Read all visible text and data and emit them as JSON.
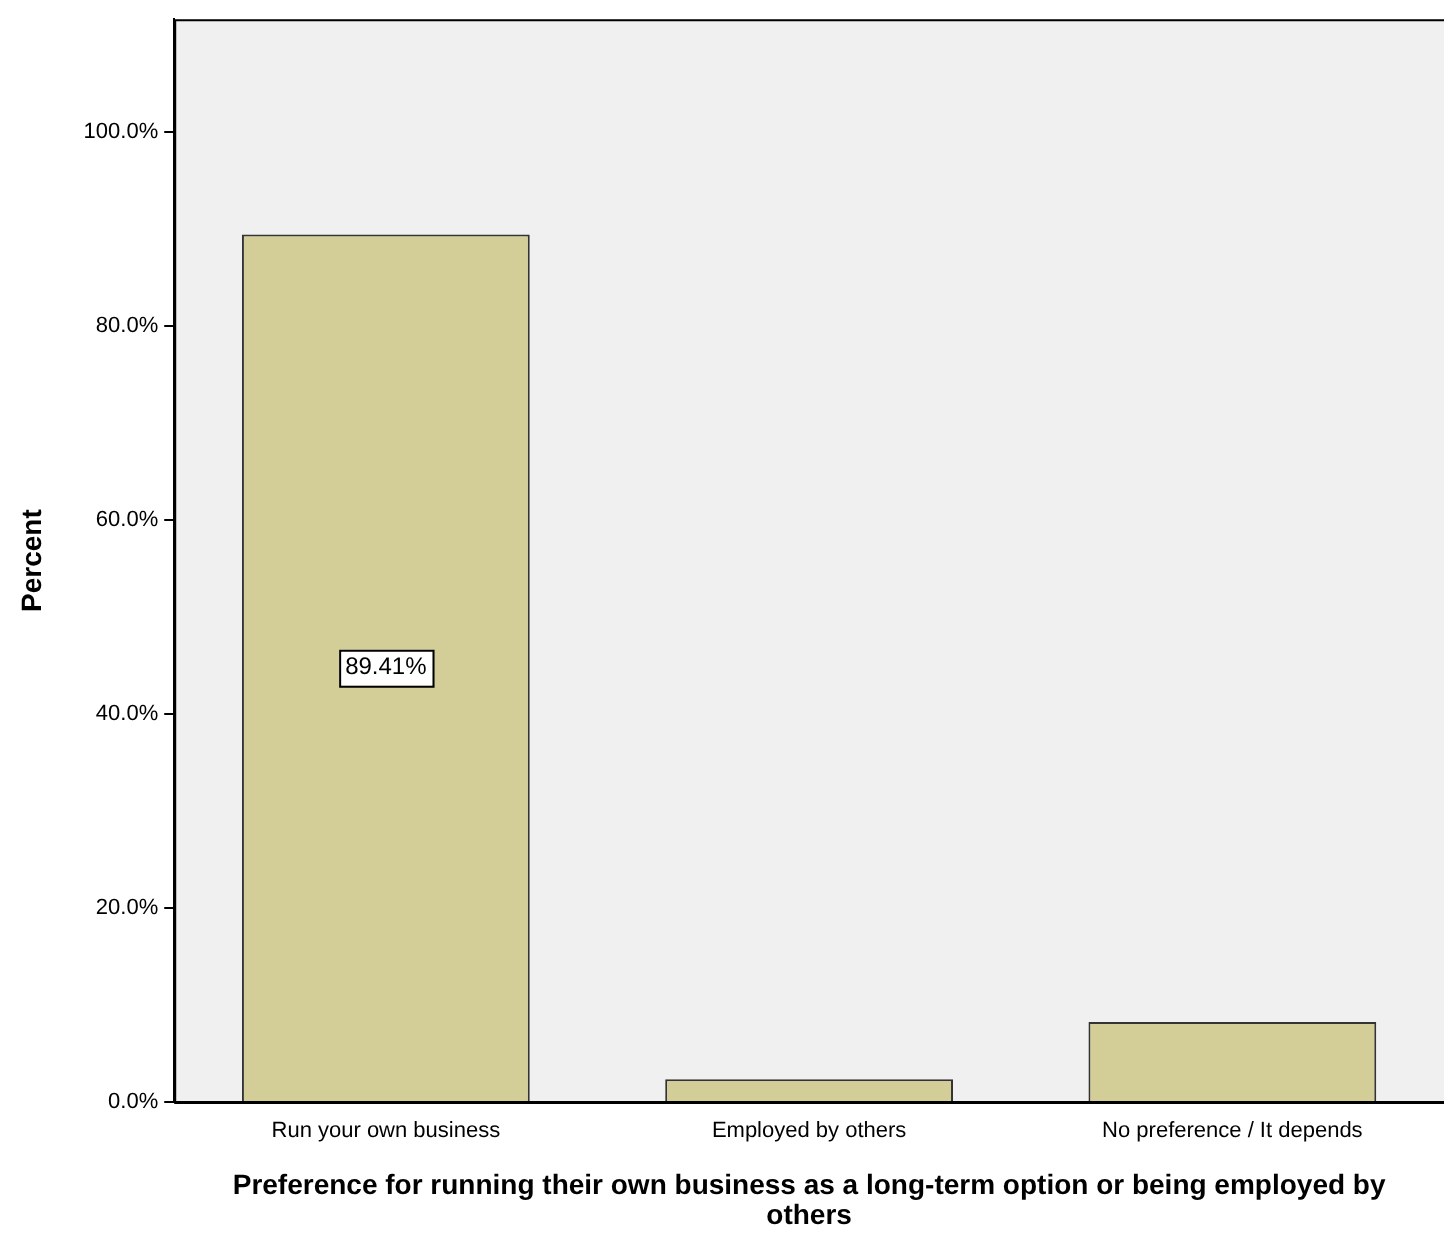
{
  "chart_data": {
    "type": "bar",
    "xlabel": "Preference for running their own business as a long-term option or being employed by others",
    "ylabel": "Percent",
    "categories": [
      "Run your own business",
      "Employed by others",
      "No preference / It depends"
    ],
    "values": [
      89.41,
      2.35,
      8.24
    ],
    "color": "#d3ce97",
    "value_labels": [
      "89.41%",
      null,
      null
    ],
    "ylim": [
      0,
      111.6
    ],
    "yticks": [
      {
        "value": 0,
        "label": "0.0%"
      },
      {
        "value": 20,
        "label": "20.0%"
      },
      {
        "value": 40,
        "label": "40.0%"
      },
      {
        "value": 60,
        "label": "60.0%"
      },
      {
        "value": 80,
        "label": "80.0%"
      },
      {
        "value": 100,
        "label": "100.0%"
      }
    ],
    "grid": false,
    "legend": false
  }
}
